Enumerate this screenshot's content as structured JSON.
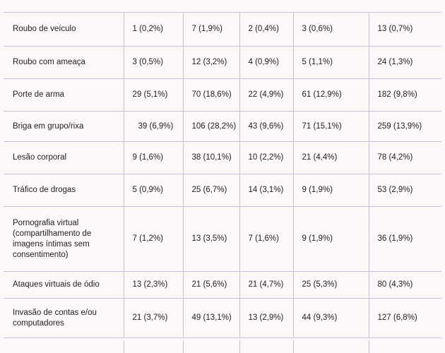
{
  "table": {
    "rows": [
      {
        "label": "Roubo de veículo",
        "values": [
          "1 (0,2%)",
          "7 (1,9%)",
          "2 (0,4%)",
          "3 (0,6%)",
          "13 (0,7%)"
        ]
      },
      {
        "label": "Roubo com ameaça",
        "values": [
          "3 (0,5%)",
          "12 (3,2%)",
          "4 (0,9%)",
          "5 (1,1%)",
          "24 (1,3%)"
        ]
      },
      {
        "label": "Porte de arma",
        "values": [
          "29 (5,1%)",
          "70 (18,6%)",
          "22 (4,9%)",
          "61 (12,9%)",
          "182 (9,8%)"
        ]
      },
      {
        "label": "Briga em grupo/rixa",
        "values": [
          "39 (6,9%)",
          "106 (28,2%)",
          "43 (9,6%)",
          "71 (15,1%)",
          "259 (13,9%)"
        ]
      },
      {
        "label": "Lesão corporal",
        "values": [
          "9 (1,6%)",
          "38 (10,1%)",
          "10 (2,2%)",
          "21 (4,4%)",
          "78 (4,2%)"
        ]
      },
      {
        "label": "Tráfico de drogas",
        "values": [
          "5 (0,9%)",
          "25 (6,7%)",
          "14 (3,1%)",
          "9 (1,9%)",
          "53 (2,9%)"
        ]
      },
      {
        "label": "Pornografia virtual (compartilhamento de imagens íntimas sem consentimento)",
        "values": [
          "7 (1,2%)",
          "13 (3,5%)",
          "7 (1,6%)",
          "9 (1,9%)",
          "36 (1,9%)"
        ]
      },
      {
        "label": "Ataques virtuais de ódio",
        "values": [
          "13 (2,3%)",
          "21 (5,6%)",
          "21 (4,7%)",
          "25 (5,3%)",
          "80 (4,3%)"
        ]
      },
      {
        "label": "Invasão de contas e/ou computadores",
        "values": [
          "21 (3,7%)",
          "49 (13,1%)",
          "13 (2,9%)",
          "44 (9,3%)",
          "127 (6,8%)"
        ]
      }
    ]
  },
  "colors": {
    "background": "#fdf8f8",
    "grid_line": "#c9bfdc",
    "text": "#1e1e1e"
  }
}
